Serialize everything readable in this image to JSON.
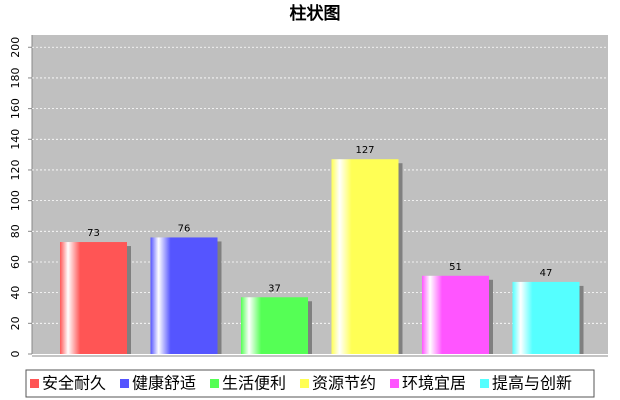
{
  "chart_data": {
    "type": "bar",
    "title": "柱状图",
    "series": [
      {
        "name": "安全耐久",
        "color": "#ff5555",
        "values": [
          73
        ]
      },
      {
        "name": "健康舒适",
        "color": "#5555ff",
        "values": [
          76
        ]
      },
      {
        "name": "生活便利",
        "color": "#55ff55",
        "values": [
          37
        ]
      },
      {
        "name": "资源节约",
        "color": "#ffff55",
        "values": [
          127
        ]
      },
      {
        "name": "环境宜居",
        "color": "#ff55ff",
        "values": [
          51
        ]
      },
      {
        "name": "提高与创新",
        "color": "#55ffff",
        "values": [
          47
        ]
      }
    ],
    "ylim": [
      0,
      208
    ],
    "yticks": [
      0,
      20,
      40,
      60,
      80,
      100,
      120,
      140,
      160,
      180,
      200
    ],
    "grid": true
  }
}
